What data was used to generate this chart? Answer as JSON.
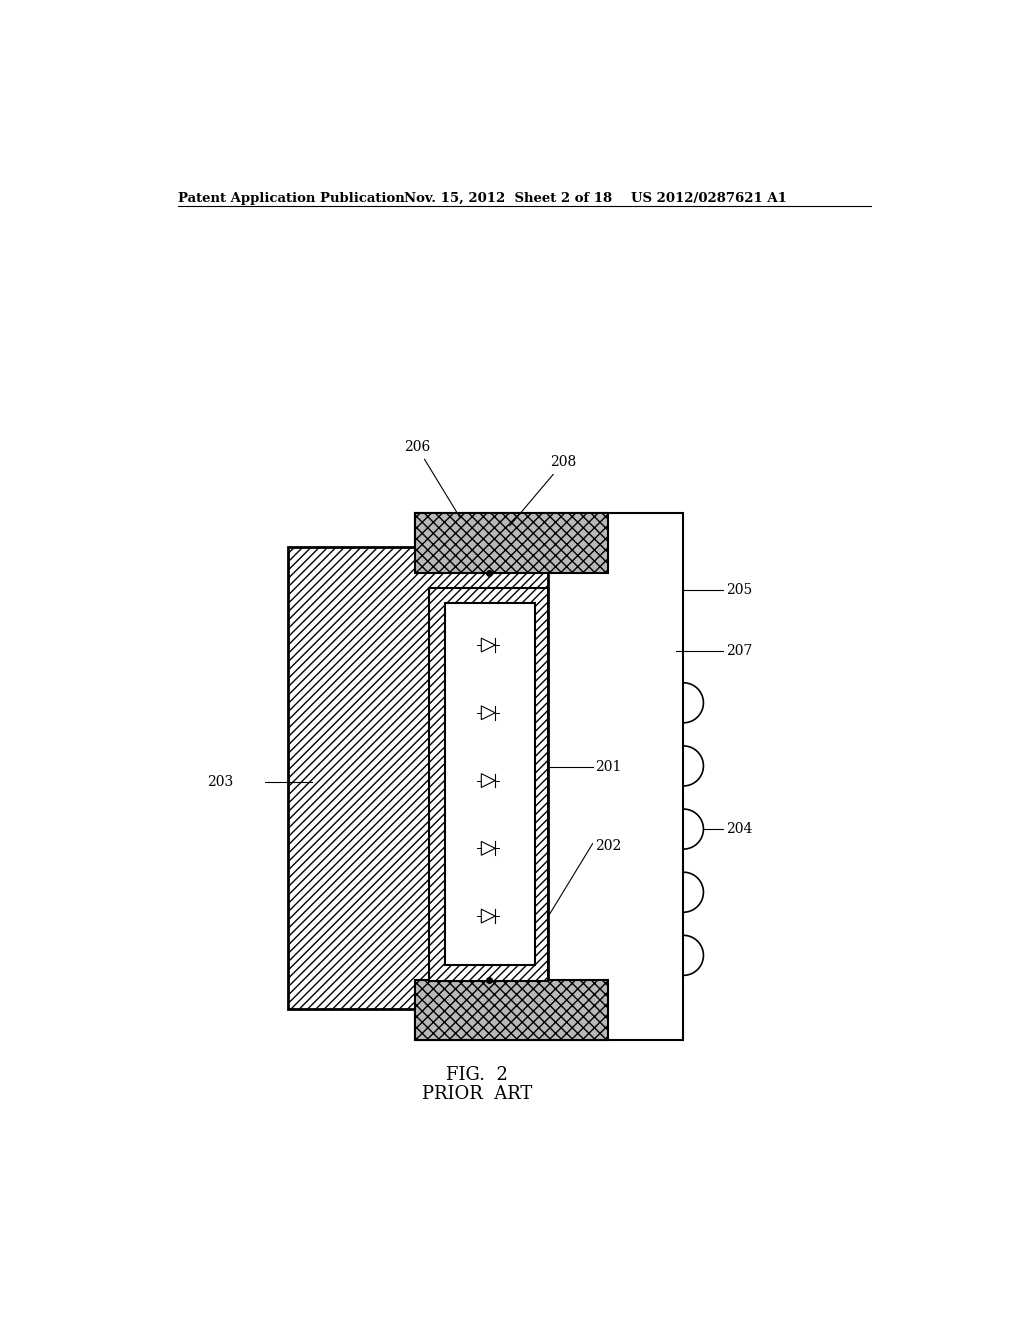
{
  "bg_color": "#ffffff",
  "header_text": "Patent Application Publication",
  "header_date": "Nov. 15, 2012  Sheet 2 of 18",
  "header_patent": "US 2012/0287621 A1",
  "fig_label": "FIG.  2",
  "fig_sublabel": "PRIOR  ART"
}
